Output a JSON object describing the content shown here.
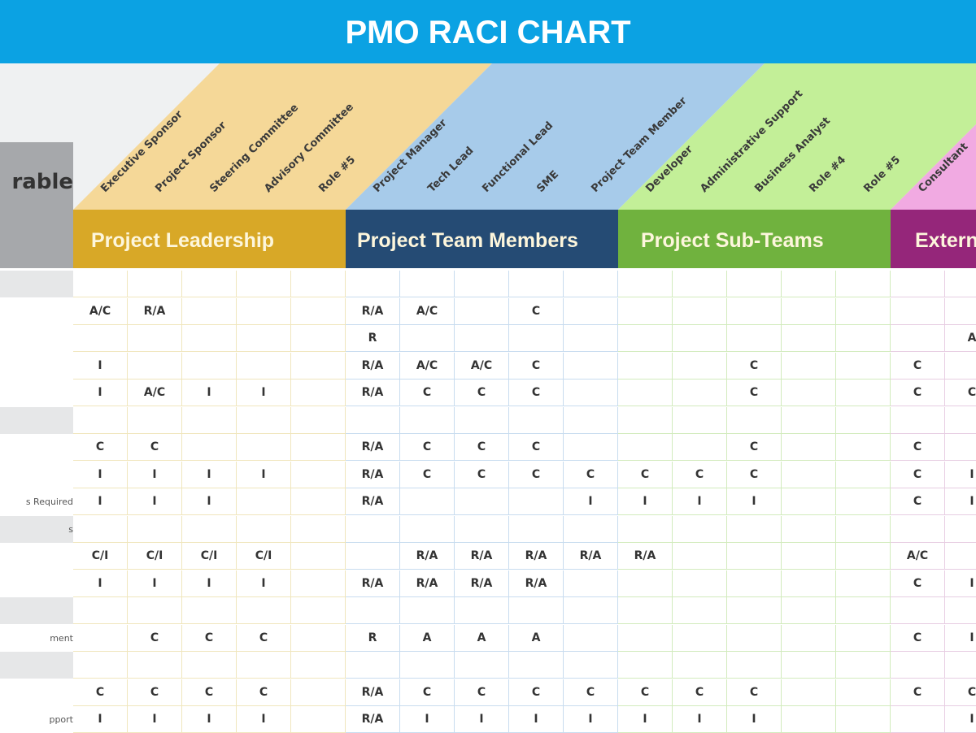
{
  "title": "PMO RACI CHART",
  "deliverable_header": "rable",
  "groups": [
    {
      "name": "Project Leadership",
      "color": "#d8a827",
      "light": "#f5d898",
      "grid": "#f0e6bd",
      "roles": [
        "Executive Sponsor",
        "Project Sponsor",
        "Steering Committee",
        "Advisory Committee",
        "Role #5"
      ]
    },
    {
      "name": "Project Team Members",
      "color": "#254b74",
      "light": "#a7cbea",
      "grid": "#c8dcef",
      "roles": [
        "Project Manager",
        "Tech Lead",
        "Functional Lead",
        "SME",
        "Project Team Member"
      ]
    },
    {
      "name": "Project Sub-Teams",
      "color": "#70b23e",
      "light": "#c3ef98",
      "grid": "#d2ebbd",
      "roles": [
        "Developer",
        "Administrative Support",
        "Business Analyst",
        "Role #4",
        "Role #5"
      ]
    },
    {
      "name": "Extern",
      "color": "#95267a",
      "light": "#f1aae2",
      "grid": "#e7cde2",
      "roles": [
        "Consultant",
        ""
      ]
    }
  ],
  "rows": [
    {
      "label": "",
      "section": true,
      "values": [
        "",
        "",
        "",
        "",
        "",
        "",
        "",
        "",
        "",
        "",
        "",
        "",
        "",
        "",
        "",
        "",
        ""
      ]
    },
    {
      "label": "",
      "section": false,
      "values": [
        "A/C",
        "R/A",
        "",
        "",
        "",
        "R/A",
        "A/C",
        "",
        "C",
        "",
        "",
        "",
        "",
        "",
        "",
        "",
        ""
      ]
    },
    {
      "label": "",
      "section": false,
      "values": [
        "",
        "",
        "",
        "",
        "",
        "R",
        "",
        "",
        "",
        "",
        "",
        "",
        "",
        "",
        "",
        "",
        "A"
      ]
    },
    {
      "label": "",
      "section": false,
      "values": [
        "I",
        "",
        "",
        "",
        "",
        "R/A",
        "A/C",
        "A/C",
        "C",
        "",
        "",
        "",
        "C",
        "",
        "",
        "C",
        ""
      ]
    },
    {
      "label": "",
      "section": false,
      "values": [
        "I",
        "A/C",
        "I",
        "I",
        "",
        "R/A",
        "C",
        "C",
        "C",
        "",
        "",
        "",
        "C",
        "",
        "",
        "C",
        "C"
      ]
    },
    {
      "label": "",
      "section": true,
      "values": [
        "",
        "",
        "",
        "",
        "",
        "",
        "",
        "",
        "",
        "",
        "",
        "",
        "",
        "",
        "",
        "",
        ""
      ]
    },
    {
      "label": "",
      "section": false,
      "values": [
        "C",
        "C",
        "",
        "",
        "",
        "R/A",
        "C",
        "C",
        "C",
        "",
        "",
        "",
        "C",
        "",
        "",
        "C",
        ""
      ]
    },
    {
      "label": "",
      "section": false,
      "values": [
        "I",
        "I",
        "I",
        "I",
        "",
        "R/A",
        "C",
        "C",
        "C",
        "C",
        "C",
        "C",
        "C",
        "",
        "",
        "C",
        "I"
      ]
    },
    {
      "label": "s Required",
      "section": false,
      "values": [
        "I",
        "I",
        "I",
        "",
        "",
        "R/A",
        "",
        "",
        "",
        "I",
        "I",
        "I",
        "I",
        "",
        "",
        "C",
        "I"
      ]
    },
    {
      "label": "s",
      "section": true,
      "values": [
        "",
        "",
        "",
        "",
        "",
        "",
        "",
        "",
        "",
        "",
        "",
        "",
        "",
        "",
        "",
        "",
        ""
      ]
    },
    {
      "label": "",
      "section": false,
      "values": [
        "C/I",
        "C/I",
        "C/I",
        "C/I",
        "",
        "",
        "R/A",
        "R/A",
        "R/A",
        "R/A",
        "R/A",
        "",
        "",
        "",
        "",
        "A/C",
        ""
      ]
    },
    {
      "label": "",
      "section": false,
      "values": [
        "I",
        "I",
        "I",
        "I",
        "",
        "R/A",
        "R/A",
        "R/A",
        "R/A",
        "",
        "",
        "",
        "",
        "",
        "",
        "C",
        "I"
      ]
    },
    {
      "label": "",
      "section": true,
      "values": [
        "",
        "",
        "",
        "",
        "",
        "",
        "",
        "",
        "",
        "",
        "",
        "",
        "",
        "",
        "",
        "",
        ""
      ]
    },
    {
      "label": "ment",
      "section": false,
      "values": [
        "",
        "C",
        "C",
        "C",
        "",
        "R",
        "A",
        "A",
        "A",
        "",
        "",
        "",
        "",
        "",
        "",
        "C",
        "I"
      ]
    },
    {
      "label": "",
      "section": true,
      "values": [
        "",
        "",
        "",
        "",
        "",
        "",
        "",
        "",
        "",
        "",
        "",
        "",
        "",
        "",
        "",
        "",
        ""
      ]
    },
    {
      "label": "",
      "section": false,
      "values": [
        "C",
        "C",
        "C",
        "C",
        "",
        "R/A",
        "C",
        "C",
        "C",
        "C",
        "C",
        "C",
        "C",
        "",
        "",
        "C",
        "C"
      ]
    },
    {
      "label": "pport",
      "section": false,
      "values": [
        "I",
        "I",
        "I",
        "I",
        "",
        "R/A",
        "I",
        "I",
        "I",
        "I",
        "I",
        "I",
        "I",
        "",
        "",
        "",
        "I"
      ]
    }
  ]
}
